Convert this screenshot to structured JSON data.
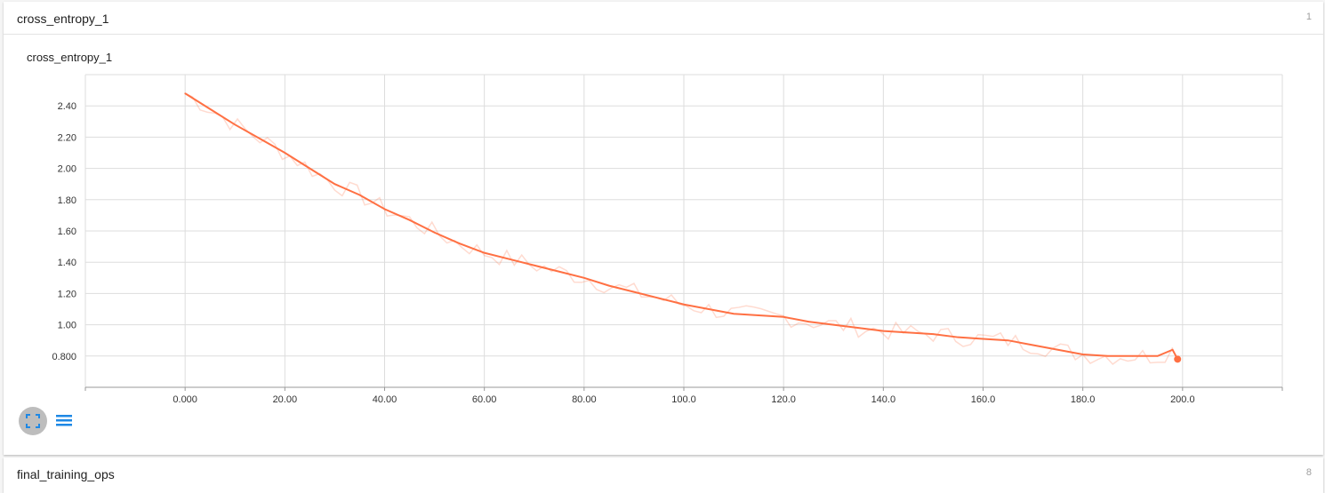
{
  "cards": [
    {
      "title": "cross_entropy_1",
      "count": "1"
    },
    {
      "title": "final_training_ops",
      "count": "8"
    }
  ],
  "chart_data": {
    "type": "line",
    "title": "cross_entropy_1",
    "xlabel": "",
    "ylabel": "",
    "xlim": [
      -20,
      220
    ],
    "ylim": [
      0.6,
      2.6
    ],
    "x_ticks": [
      0,
      20,
      40,
      60,
      80,
      100,
      120,
      140,
      160,
      180,
      200
    ],
    "x_tick_labels": [
      "0.000",
      "20.00",
      "40.00",
      "60.00",
      "80.00",
      "100.0",
      "120.0",
      "140.0",
      "160.0",
      "180.0",
      "200.0"
    ],
    "y_ticks": [
      0.8,
      1.0,
      1.2,
      1.4,
      1.6,
      1.8,
      2.0,
      2.2,
      2.4
    ],
    "y_tick_labels": [
      "0.800",
      "1.00",
      "1.20",
      "1.40",
      "1.60",
      "1.80",
      "2.00",
      "2.20",
      "2.40"
    ],
    "grid": true,
    "series": [
      {
        "color": "#ff7043",
        "x": [
          0,
          5,
          10,
          15,
          20,
          25,
          30,
          35,
          40,
          45,
          50,
          55,
          60,
          65,
          70,
          75,
          80,
          85,
          90,
          95,
          100,
          105,
          110,
          115,
          120,
          125,
          130,
          135,
          140,
          145,
          150,
          155,
          160,
          165,
          170,
          175,
          180,
          185,
          190,
          195,
          198,
          199
        ],
        "values": [
          2.48,
          2.38,
          2.28,
          2.19,
          2.1,
          2.0,
          1.9,
          1.83,
          1.74,
          1.67,
          1.59,
          1.52,
          1.46,
          1.42,
          1.38,
          1.34,
          1.3,
          1.25,
          1.21,
          1.17,
          1.13,
          1.1,
          1.07,
          1.06,
          1.05,
          1.02,
          1.0,
          0.98,
          0.96,
          0.95,
          0.94,
          0.92,
          0.91,
          0.9,
          0.87,
          0.84,
          0.81,
          0.8,
          0.8,
          0.8,
          0.84,
          0.78
        ]
      }
    ]
  },
  "icons": {
    "expand": "fullscreen-icon",
    "data": "list-icon"
  }
}
